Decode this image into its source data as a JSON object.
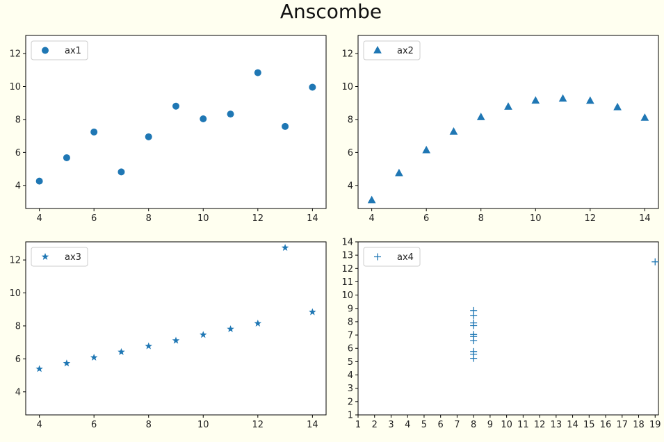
{
  "figure": {
    "title": "Anscombe",
    "background": "#fffff0",
    "marker_color": "#1f77b4"
  },
  "chart_data": [
    {
      "type": "scatter",
      "legend": "ax1",
      "marker": "circle",
      "legend_position": "upper-left",
      "x": [
        4,
        5,
        6,
        7,
        8,
        9,
        10,
        11,
        12,
        13,
        14
      ],
      "y": [
        4.26,
        5.68,
        7.24,
        4.82,
        6.95,
        8.81,
        8.04,
        8.33,
        10.84,
        7.58,
        9.96
      ],
      "xlim": [
        3.5,
        14.5
      ],
      "ylim": [
        2.6,
        13.1
      ],
      "xticks": [
        4,
        6,
        8,
        10,
        12,
        14
      ],
      "yticks": [
        4,
        6,
        8,
        10,
        12
      ]
    },
    {
      "type": "scatter",
      "legend": "ax2",
      "marker": "triangle",
      "legend_position": "upper-left",
      "x": [
        4,
        5,
        6,
        7,
        8,
        9,
        10,
        11,
        12,
        13,
        14
      ],
      "y": [
        3.1,
        4.74,
        6.13,
        7.26,
        8.14,
        8.77,
        9.14,
        9.26,
        9.13,
        8.74,
        8.1
      ],
      "xlim": [
        3.5,
        14.5
      ],
      "ylim": [
        2.6,
        13.1
      ],
      "xticks": [
        4,
        6,
        8,
        10,
        12,
        14
      ],
      "yticks": [
        4,
        6,
        8,
        10,
        12
      ]
    },
    {
      "type": "scatter",
      "legend": "ax3",
      "marker": "star",
      "legend_position": "upper-left",
      "x": [
        4,
        5,
        6,
        7,
        8,
        9,
        10,
        11,
        12,
        13,
        14
      ],
      "y": [
        5.39,
        5.73,
        6.08,
        6.42,
        6.77,
        7.11,
        7.46,
        7.81,
        8.15,
        12.74,
        8.84
      ],
      "xlim": [
        3.5,
        14.5
      ],
      "ylim": [
        2.6,
        13.1
      ],
      "xticks": [
        4,
        6,
        8,
        10,
        12,
        14
      ],
      "yticks": [
        4,
        6,
        8,
        10,
        12
      ]
    },
    {
      "type": "scatter",
      "legend": "ax4",
      "marker": "plus",
      "legend_position": "upper-left",
      "x": [
        8,
        8,
        8,
        8,
        8,
        8,
        8,
        19,
        8,
        8,
        8
      ],
      "y": [
        6.58,
        5.76,
        7.71,
        8.84,
        8.47,
        7.04,
        5.25,
        12.5,
        5.56,
        7.91,
        6.89
      ],
      "xlim": [
        1,
        19.2
      ],
      "ylim": [
        1,
        14
      ],
      "xticks": [
        1,
        2,
        3,
        4,
        5,
        6,
        7,
        8,
        9,
        10,
        11,
        12,
        13,
        14,
        15,
        16,
        17,
        18,
        19
      ],
      "yticks": [
        1,
        2,
        3,
        4,
        5,
        6,
        7,
        8,
        9,
        10,
        11,
        12,
        13,
        14
      ]
    }
  ]
}
